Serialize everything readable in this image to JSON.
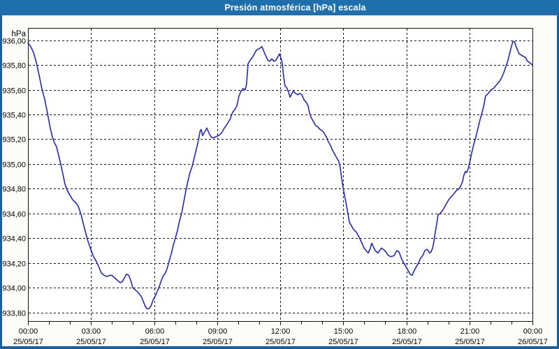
{
  "window": {
    "title": "Presión atmosférica [hPa] escala",
    "title_bar_color": "#1e6fac",
    "border_color": "#1b5f9e",
    "background_color": "#fcfcf8"
  },
  "chart_data": {
    "type": "line",
    "title": "Presión atmosférica [hPa] escala",
    "ylabel_unit": "hPa",
    "grid": "dashed",
    "legend": "none",
    "line_color": "#2228c0",
    "ylim": [
      933.73,
      936.1
    ],
    "xlim_hours": [
      0,
      24
    ],
    "minor_tick_hours": 1,
    "yticks": [
      {
        "value": 936.0,
        "label": "936,00"
      },
      {
        "value": 935.8,
        "label": "935,80"
      },
      {
        "value": 935.6,
        "label": "935,60"
      },
      {
        "value": 935.4,
        "label": "935,40"
      },
      {
        "value": 935.2,
        "label": "935,20"
      },
      {
        "value": 935.0,
        "label": "935,00"
      },
      {
        "value": 934.8,
        "label": "934,80"
      },
      {
        "value": 934.6,
        "label": "934,60"
      },
      {
        "value": 934.4,
        "label": "934,40"
      },
      {
        "value": 934.2,
        "label": "934,20"
      },
      {
        "value": 934.0,
        "label": "934,00"
      },
      {
        "value": 933.8,
        "label": "933,80"
      }
    ],
    "xticks": [
      {
        "hour": 0,
        "time": "00:00",
        "date": "25/05/17"
      },
      {
        "hour": 3,
        "time": "03:00",
        "date": "25/05/17"
      },
      {
        "hour": 6,
        "time": "06:00",
        "date": "25/05/17"
      },
      {
        "hour": 9,
        "time": "09:00",
        "date": "25/05/17"
      },
      {
        "hour": 12,
        "time": "12:00",
        "date": "25/05/17"
      },
      {
        "hour": 15,
        "time": "15:00",
        "date": "25/05/17"
      },
      {
        "hour": 18,
        "time": "18:00",
        "date": "25/05/17"
      },
      {
        "hour": 21,
        "time": "21:00",
        "date": "25/05/17"
      },
      {
        "hour": 24,
        "time": "00:00",
        "date": "26/05/17"
      }
    ],
    "series": [
      {
        "name": "Presión atmosférica",
        "points": [
          [
            0,
            935.98
          ],
          [
            0.13,
            935.95
          ],
          [
            0.27,
            935.9
          ],
          [
            0.4,
            935.82
          ],
          [
            0.53,
            935.72
          ],
          [
            0.66,
            935.61
          ],
          [
            0.8,
            935.52
          ],
          [
            0.93,
            935.41
          ],
          [
            1.06,
            935.29
          ],
          [
            1.16,
            935.22
          ],
          [
            1.26,
            935.17
          ],
          [
            1.36,
            935.14
          ],
          [
            1.46,
            935.07
          ],
          [
            1.56,
            935.0
          ],
          [
            1.66,
            934.92
          ],
          [
            1.76,
            934.84
          ],
          [
            1.86,
            934.79
          ],
          [
            1.99,
            934.75
          ],
          [
            2.13,
            934.71
          ],
          [
            2.26,
            934.69
          ],
          [
            2.39,
            934.66
          ],
          [
            2.53,
            934.59
          ],
          [
            2.66,
            934.5
          ],
          [
            2.83,
            934.39
          ],
          [
            2.99,
            934.31
          ],
          [
            3.12,
            934.25
          ],
          [
            3.26,
            934.21
          ],
          [
            3.39,
            934.16
          ],
          [
            3.49,
            934.12
          ],
          [
            3.62,
            934.1
          ],
          [
            3.76,
            934.09
          ],
          [
            3.89,
            934.1
          ],
          [
            3.99,
            934.1
          ],
          [
            4.12,
            934.08
          ],
          [
            4.25,
            934.06
          ],
          [
            4.39,
            934.04
          ],
          [
            4.49,
            934.05
          ],
          [
            4.59,
            934.08
          ],
          [
            4.69,
            934.11
          ],
          [
            4.79,
            934.1
          ],
          [
            4.89,
            934.06
          ],
          [
            4.99,
            934.0
          ],
          [
            5.12,
            933.98
          ],
          [
            5.25,
            933.96
          ],
          [
            5.39,
            933.93
          ],
          [
            5.48,
            933.89
          ],
          [
            5.58,
            933.85
          ],
          [
            5.65,
            933.83
          ],
          [
            5.75,
            933.83
          ],
          [
            5.85,
            933.85
          ],
          [
            5.95,
            933.9
          ],
          [
            6.05,
            933.93
          ],
          [
            6.15,
            933.97
          ],
          [
            6.25,
            934.01
          ],
          [
            6.35,
            934.06
          ],
          [
            6.45,
            934.1
          ],
          [
            6.51,
            934.11
          ],
          [
            6.61,
            934.15
          ],
          [
            6.71,
            934.21
          ],
          [
            6.81,
            934.27
          ],
          [
            6.91,
            934.34
          ],
          [
            7.01,
            934.4
          ],
          [
            7.11,
            934.46
          ],
          [
            7.21,
            934.54
          ],
          [
            7.31,
            934.6
          ],
          [
            7.41,
            934.69
          ],
          [
            7.51,
            934.78
          ],
          [
            7.61,
            934.86
          ],
          [
            7.71,
            934.93
          ],
          [
            7.81,
            934.98
          ],
          [
            7.91,
            935.05
          ],
          [
            8.01,
            935.12
          ],
          [
            8.11,
            935.19
          ],
          [
            8.18,
            935.26
          ],
          [
            8.24,
            935.28
          ],
          [
            8.31,
            935.23
          ],
          [
            8.41,
            935.26
          ],
          [
            8.51,
            935.29
          ],
          [
            8.61,
            935.25
          ],
          [
            8.71,
            935.22
          ],
          [
            8.81,
            935.21
          ],
          [
            8.94,
            935.22
          ],
          [
            9.07,
            935.23
          ],
          [
            9.21,
            935.25
          ],
          [
            9.34,
            935.29
          ],
          [
            9.47,
            935.32
          ],
          [
            9.61,
            935.36
          ],
          [
            9.74,
            935.42
          ],
          [
            9.84,
            935.44
          ],
          [
            9.94,
            935.47
          ],
          [
            10.04,
            935.55
          ],
          [
            10.14,
            935.59
          ],
          [
            10.24,
            935.61
          ],
          [
            10.34,
            935.6
          ],
          [
            10.4,
            935.65
          ],
          [
            10.47,
            935.81
          ],
          [
            10.57,
            935.84
          ],
          [
            10.67,
            935.86
          ],
          [
            10.77,
            935.89
          ],
          [
            10.87,
            935.92
          ],
          [
            10.97,
            935.93
          ],
          [
            11.07,
            935.94
          ],
          [
            11.13,
            935.95
          ],
          [
            11.2,
            935.92
          ],
          [
            11.3,
            935.88
          ],
          [
            11.4,
            935.84
          ],
          [
            11.5,
            935.83
          ],
          [
            11.6,
            935.85
          ],
          [
            11.7,
            935.83
          ],
          [
            11.8,
            935.84
          ],
          [
            11.9,
            935.87
          ],
          [
            11.97,
            935.89
          ],
          [
            12.03,
            935.86
          ],
          [
            12.1,
            935.81
          ],
          [
            12.13,
            935.76
          ],
          [
            12.17,
            935.7
          ],
          [
            12.23,
            935.63
          ],
          [
            12.3,
            935.62
          ],
          [
            12.4,
            935.58
          ],
          [
            12.47,
            935.54
          ],
          [
            12.56,
            935.57
          ],
          [
            12.63,
            935.59
          ],
          [
            12.73,
            935.57
          ],
          [
            12.83,
            935.56
          ],
          [
            12.93,
            935.57
          ],
          [
            13.03,
            935.56
          ],
          [
            13.13,
            935.52
          ],
          [
            13.23,
            935.5
          ],
          [
            13.33,
            935.47
          ],
          [
            13.4,
            935.41
          ],
          [
            13.49,
            935.37
          ],
          [
            13.59,
            935.34
          ],
          [
            13.69,
            935.31
          ],
          [
            13.79,
            935.3
          ],
          [
            13.89,
            935.28
          ],
          [
            13.99,
            935.27
          ],
          [
            14.09,
            935.25
          ],
          [
            14.19,
            935.22
          ],
          [
            14.29,
            935.18
          ],
          [
            14.39,
            935.15
          ],
          [
            14.49,
            935.11
          ],
          [
            14.59,
            935.08
          ],
          [
            14.69,
            935.05
          ],
          [
            14.79,
            935.02
          ],
          [
            14.86,
            934.97
          ],
          [
            14.92,
            934.89
          ],
          [
            14.99,
            934.81
          ],
          [
            15.09,
            934.72
          ],
          [
            15.19,
            934.63
          ],
          [
            15.29,
            934.53
          ],
          [
            15.39,
            934.5
          ],
          [
            15.49,
            934.47
          ],
          [
            15.62,
            934.45
          ],
          [
            15.75,
            934.41
          ],
          [
            15.89,
            934.36
          ],
          [
            15.99,
            934.32
          ],
          [
            16.09,
            934.3
          ],
          [
            16.19,
            934.28
          ],
          [
            16.29,
            934.32
          ],
          [
            16.35,
            934.36
          ],
          [
            16.52,
            934.3
          ],
          [
            16.65,
            934.28
          ],
          [
            16.82,
            934.32
          ],
          [
            16.98,
            934.3
          ],
          [
            17.15,
            934.26
          ],
          [
            17.28,
            934.25
          ],
          [
            17.42,
            934.26
          ],
          [
            17.55,
            934.3
          ],
          [
            17.65,
            934.29
          ],
          [
            17.78,
            934.23
          ],
          [
            17.88,
            934.2
          ],
          [
            17.98,
            934.17
          ],
          [
            18.08,
            934.14
          ],
          [
            18.18,
            934.11
          ],
          [
            18.28,
            934.1
          ],
          [
            18.38,
            934.14
          ],
          [
            18.48,
            934.17
          ],
          [
            18.58,
            934.2
          ],
          [
            18.68,
            934.24
          ],
          [
            18.78,
            934.26
          ],
          [
            18.88,
            934.3
          ],
          [
            18.98,
            934.31
          ],
          [
            19.04,
            934.3
          ],
          [
            19.11,
            934.28
          ],
          [
            19.18,
            934.29
          ],
          [
            19.25,
            934.32
          ],
          [
            19.31,
            934.37
          ],
          [
            19.38,
            934.45
          ],
          [
            19.45,
            934.52
          ],
          [
            19.51,
            934.59
          ],
          [
            19.61,
            934.6
          ],
          [
            19.71,
            934.62
          ],
          [
            19.81,
            934.65
          ],
          [
            19.91,
            934.68
          ],
          [
            20.01,
            934.71
          ],
          [
            20.11,
            934.73
          ],
          [
            20.21,
            934.75
          ],
          [
            20.31,
            934.77
          ],
          [
            20.41,
            934.79
          ],
          [
            20.51,
            934.8
          ],
          [
            20.61,
            934.83
          ],
          [
            20.68,
            934.86
          ],
          [
            20.74,
            934.91
          ],
          [
            20.81,
            934.94
          ],
          [
            20.87,
            934.93
          ],
          [
            20.94,
            934.96
          ],
          [
            21.01,
            935.01
          ],
          [
            21.11,
            935.09
          ],
          [
            21.21,
            935.16
          ],
          [
            21.31,
            935.22
          ],
          [
            21.41,
            935.29
          ],
          [
            21.51,
            935.36
          ],
          [
            21.61,
            935.42
          ],
          [
            21.71,
            935.49
          ],
          [
            21.77,
            935.55
          ],
          [
            21.84,
            935.56
          ],
          [
            21.94,
            935.58
          ],
          [
            22.04,
            935.6
          ],
          [
            22.14,
            935.61
          ],
          [
            22.24,
            935.63
          ],
          [
            22.34,
            935.65
          ],
          [
            22.44,
            935.67
          ],
          [
            22.54,
            935.7
          ],
          [
            22.64,
            935.74
          ],
          [
            22.74,
            935.79
          ],
          [
            22.84,
            935.84
          ],
          [
            22.94,
            935.91
          ],
          [
            23.0,
            935.95
          ],
          [
            23.07,
            935.99
          ],
          [
            23.14,
            935.99
          ],
          [
            23.2,
            935.96
          ],
          [
            23.27,
            935.93
          ],
          [
            23.37,
            935.89
          ],
          [
            23.47,
            935.88
          ],
          [
            23.57,
            935.87
          ],
          [
            23.67,
            935.86
          ],
          [
            23.77,
            935.83
          ],
          [
            23.87,
            935.82
          ],
          [
            24.0,
            935.8
          ]
        ]
      }
    ]
  }
}
